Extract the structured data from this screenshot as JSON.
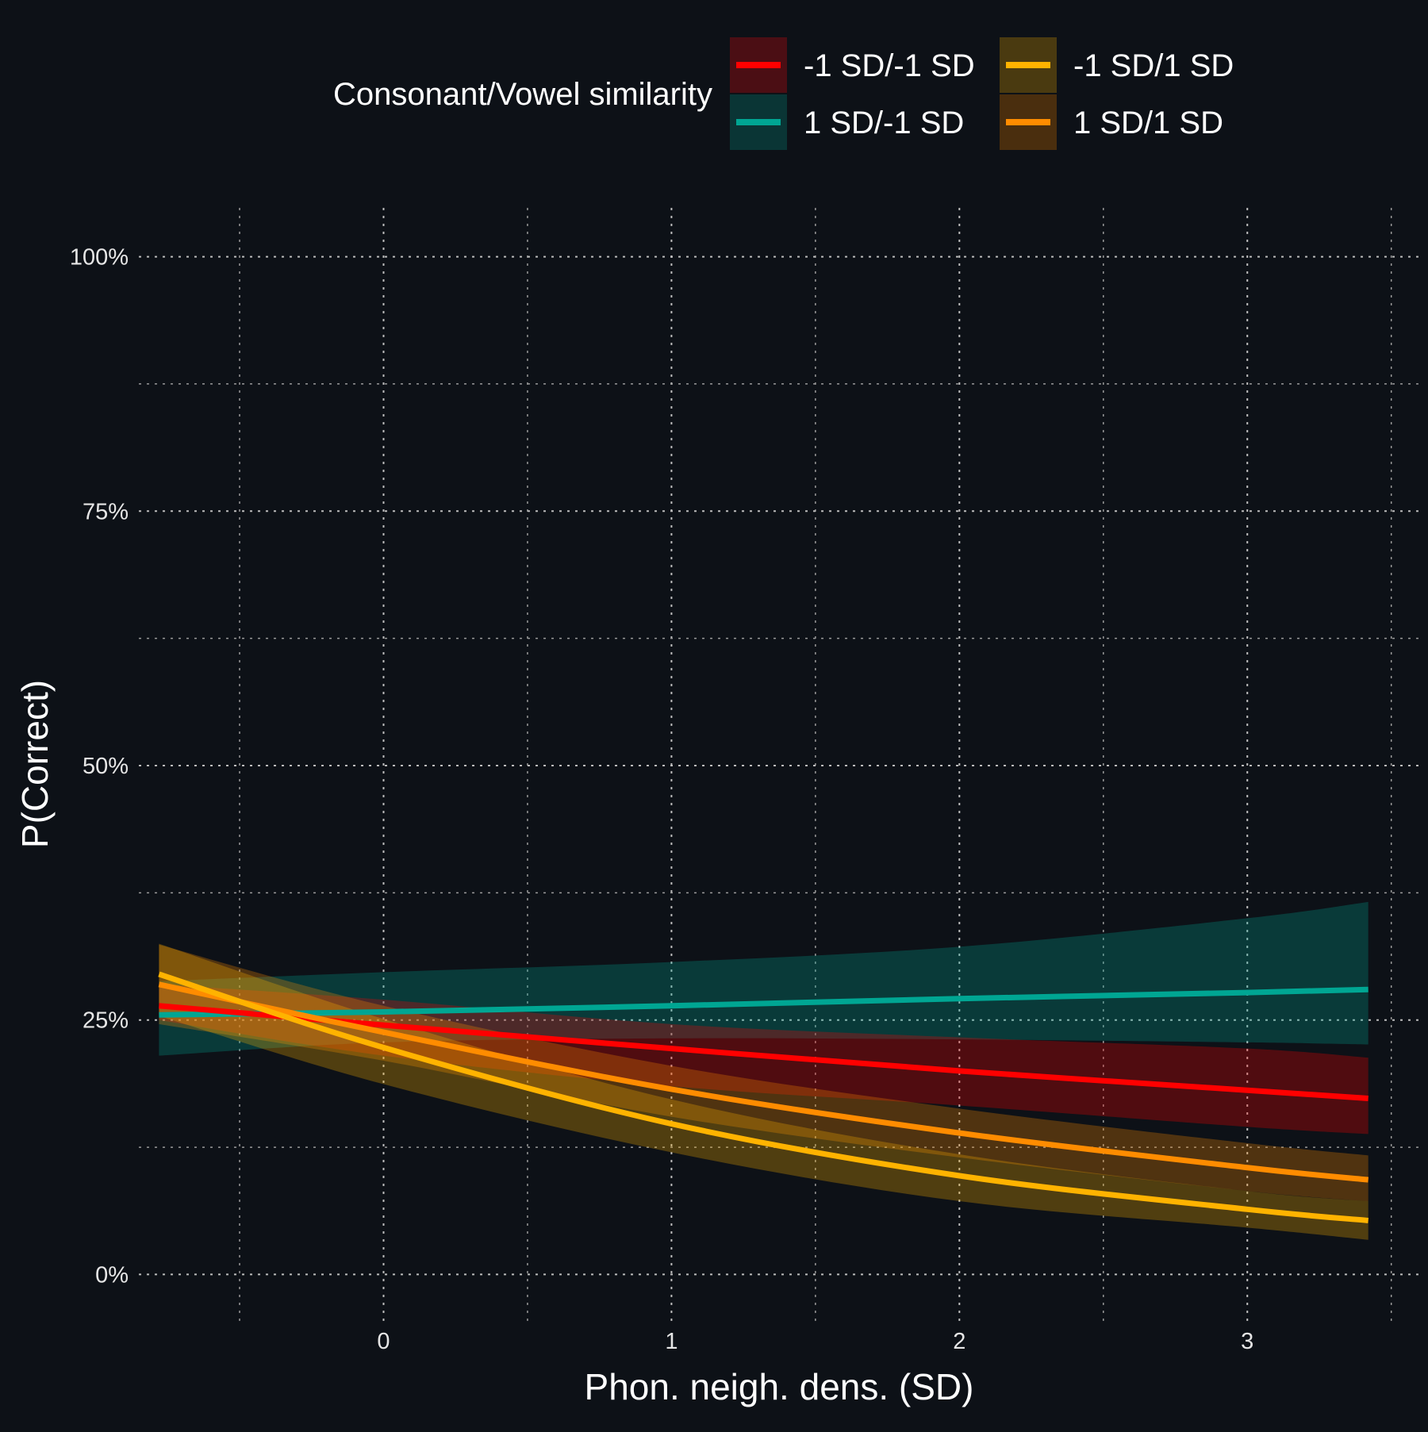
{
  "chart_data": {
    "type": "line",
    "xlabel": "Phon. neigh. dens. (SD)",
    "ylabel": "P(Correct)",
    "xlim": [
      -0.85,
      3.6
    ],
    "ylim": [
      -0.048,
      1.048
    ],
    "x_ticks": [
      0,
      1,
      2,
      3
    ],
    "x_tick_labels": [
      "0",
      "1",
      "2",
      "3"
    ],
    "x_minor_ticks": [
      -0.5,
      0.5,
      1.5,
      2.5,
      3.5
    ],
    "y_ticks": [
      0,
      0.25,
      0.5,
      0.75,
      1.0
    ],
    "y_tick_labels": [
      "0%",
      "25%",
      "50%",
      "75%",
      "100%"
    ],
    "y_minor_ticks": [
      0.125,
      0.375,
      0.625,
      0.875
    ],
    "grid": true,
    "legend": {
      "title": "Consonant/Vowel similarity",
      "position": "top"
    },
    "x": [
      -0.78,
      0,
      1,
      2,
      3,
      3.42
    ],
    "series": [
      {
        "name": "1 SD/-1 SD",
        "color": "#00a693",
        "band_color": "#0a3535",
        "values": [
          0.255,
          0.258,
          0.264,
          0.271,
          0.277,
          0.28
        ],
        "lower": [
          0.215,
          0.228,
          0.232,
          0.231,
          0.228,
          0.226
        ],
        "upper": [
          0.288,
          0.297,
          0.307,
          0.322,
          0.35,
          0.366
        ]
      },
      {
        "name": "-1 SD/-1 SD",
        "color": "#ff0000",
        "band_color": "#4b0e14",
        "values": [
          0.264,
          0.245,
          0.222,
          0.2,
          0.181,
          0.173
        ],
        "lower": [
          0.25,
          0.215,
          0.185,
          0.166,
          0.145,
          0.138
        ],
        "upper": [
          0.285,
          0.27,
          0.246,
          0.233,
          0.222,
          0.213
        ]
      },
      {
        "name": "1 SD/1 SD",
        "color": "#ff8c00",
        "band_color": "#4a2e0e",
        "values": [
          0.285,
          0.238,
          0.182,
          0.139,
          0.105,
          0.093
        ],
        "lower": [
          0.246,
          0.21,
          0.155,
          0.115,
          0.082,
          0.072
        ],
        "upper": [
          0.324,
          0.264,
          0.205,
          0.163,
          0.129,
          0.117
        ]
      },
      {
        "name": "-1 SD/1 SD",
        "color": "#ffb300",
        "band_color": "#4a3a10",
        "values": [
          0.295,
          0.223,
          0.148,
          0.097,
          0.064,
          0.053
        ],
        "lower": [
          0.254,
          0.187,
          0.12,
          0.072,
          0.046,
          0.034
        ],
        "upper": [
          0.325,
          0.251,
          0.172,
          0.118,
          0.082,
          0.072
        ]
      }
    ],
    "legend_order": [
      "-1 SD/-1 SD",
      "-1 SD/1 SD",
      "1 SD/-1 SD",
      "1 SD/1 SD"
    ]
  }
}
